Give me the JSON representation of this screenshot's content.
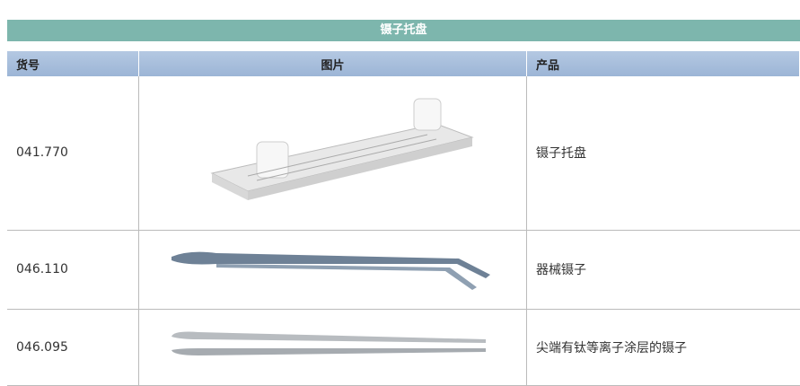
{
  "header": {
    "title": "镊子托盘"
  },
  "table": {
    "columns": [
      "货号",
      "图片",
      "产品"
    ],
    "rows": [
      [
        "041.770",
        "镊子托盘"
      ],
      [
        "046.110",
        "器械镊子"
      ],
      [
        "046.095",
        "尖端有钛等离子涂层的镊子"
      ]
    ]
  }
}
